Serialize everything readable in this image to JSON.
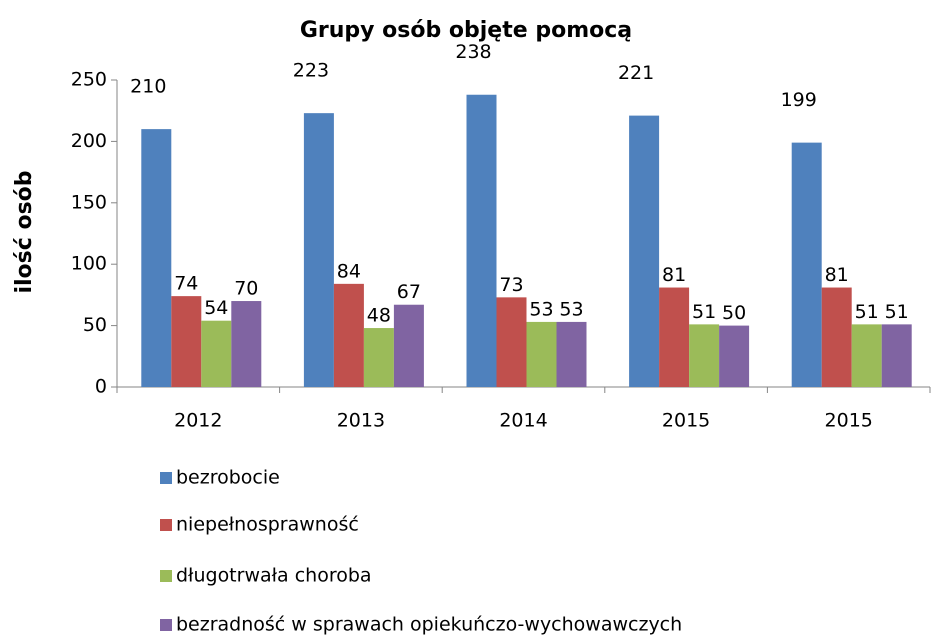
{
  "chart_data": {
    "type": "bar",
    "title": "Grupy osób objęte pomocą",
    "y_label": "ilość osób",
    "categories": [
      "2012",
      "2013",
      "2014",
      "2015",
      "2015"
    ],
    "series": [
      {
        "name": "bezrobocie",
        "color": "#4f81bd",
        "values": [
          210,
          223,
          238,
          221,
          199
        ]
      },
      {
        "name": "niepełnosprawność",
        "color": "#c0504d",
        "values": [
          74,
          84,
          73,
          81,
          81
        ]
      },
      {
        "name": "długotrwała choroba",
        "color": "#9bbb59",
        "values": [
          54,
          48,
          53,
          51,
          51
        ]
      },
      {
        "name": "bezradność w sprawach opiekuńczo-wychowawczych",
        "color": "#8064a2",
        "values": [
          70,
          67,
          53,
          50,
          51
        ]
      }
    ],
    "ylim": [
      0,
      250
    ],
    "yticks": [
      0,
      50,
      100,
      150,
      200,
      250
    ],
    "grid": false,
    "legend": "bottom"
  }
}
